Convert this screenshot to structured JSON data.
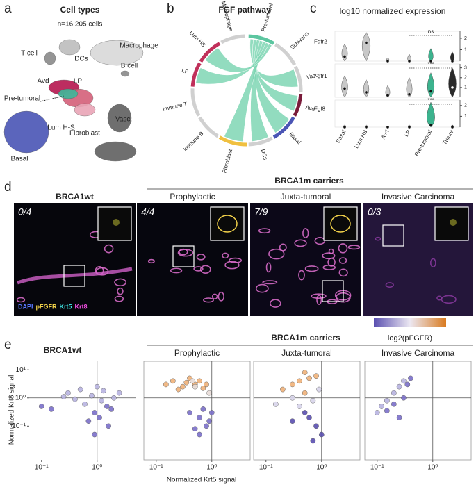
{
  "panel_a": {
    "label": "a",
    "title": "Cell types",
    "subtitle": "n=16,205 cells",
    "clusters": [
      "Macrophage",
      "T cell",
      "DCs",
      "Avd",
      "LP",
      "Pre-tumoral",
      "B cell",
      "Lum H-S",
      "Vasc.",
      "Basal",
      "Fibroblast"
    ],
    "colors": [
      "#d9d9d9",
      "#8a8a8a",
      "#bdbdbd",
      "#b5174f",
      "#d4607a",
      "#3fb89a",
      "#8a8a8a",
      "#e9a5b6",
      "#606060",
      "#4a55b5",
      "#606060"
    ]
  },
  "panel_b": {
    "label": "b",
    "title": "FGF pathway",
    "sectors": [
      "Pre-tumoral",
      "Schwann",
      "Vasc.",
      "Avd",
      "Basal",
      "DCs",
      "Fibroblast",
      "Immune B",
      "Immune T",
      "LP",
      "Lum HS",
      "Macrophage"
    ],
    "colors": [
      "#5cc6a0",
      "#d0d0d0",
      "#d0d0d0",
      "#7a1b3a",
      "#4a55b5",
      "#d0d0d0",
      "#f0c040",
      "#d0d0d0",
      "#d0d0d0",
      "#c0305a",
      "#c0305a",
      "#d0d0d0"
    ],
    "chord_color": "#7fd6b4"
  },
  "panel_c": {
    "label": "c",
    "title": "log10 normalized expression",
    "categories": [
      "Basal",
      "Lum HS",
      "Avd",
      "LP",
      "Pre-tumoral",
      "Tumor"
    ],
    "colors": [
      "#c8c8c8",
      "#c8c8c8",
      "#c8c8c8",
      "#c8c8c8",
      "#3cb38e",
      "#2a2a2a"
    ],
    "genes": [
      {
        "name": "Fgfr2",
        "ylim": [
          0,
          2.6
        ],
        "yticks": [
          1,
          2
        ],
        "maxes": [
          1.5,
          2.5,
          0.3,
          0.6,
          1.1,
          0.8
        ],
        "means": [
          0.4,
          1.6,
          0,
          0,
          0,
          0
        ],
        "annotation": "ns"
      },
      {
        "name": "Fgfr1",
        "ylim": [
          0,
          3.4
        ],
        "yticks": [
          1,
          2,
          3
        ],
        "maxes": [
          2.2,
          1.8,
          1.2,
          2.0,
          2.5,
          3.0
        ],
        "means": [
          0.9,
          0.5,
          0.2,
          0.3,
          0.6,
          1.0
        ],
        "annotation": "***"
      },
      {
        "name": "Fgf8",
        "ylim": [
          0,
          2.5
        ],
        "yticks": [
          1,
          2
        ],
        "maxes": [
          0.2,
          0.2,
          0.1,
          0.2,
          2.3,
          0.2
        ],
        "means": [
          0,
          0,
          0,
          0,
          0.2,
          0
        ],
        "annotation": "***"
      }
    ]
  },
  "panel_d": {
    "label": "d",
    "group_title": "BRCA1m carriers",
    "images": [
      {
        "title": "BRCA1wt",
        "count": "0/4"
      },
      {
        "title": "Prophylactic",
        "count": "4/4"
      },
      {
        "title": "Juxta-tumoral",
        "count": "7/9"
      },
      {
        "title": "Invasive Carcinoma",
        "count": "0/3"
      }
    ],
    "stains": [
      {
        "name": "DAPI",
        "color": "#5a78ff"
      },
      {
        "name": "pFGFR",
        "color": "#f2d24a"
      },
      {
        "name": "Krt5",
        "color": "#3ee0e0"
      },
      {
        "name": "Krt8",
        "color": "#f04ce0"
      }
    ]
  },
  "panel_e": {
    "label": "e",
    "group_title": "BRCA1m carriers",
    "colorbar_label": "log2(pFGFR)",
    "colorbar_colors": [
      "#5a4fb0",
      "#ece8f2",
      "#d97b20"
    ],
    "x_label": "Normalized Krt5 signal",
    "y_label": "Normalized Krt8 signal",
    "log_scale": true,
    "xlim": [
      0.06,
      4.9
    ],
    "ylim": [
      0.0063,
      20
    ],
    "xticks": [
      {
        "value": 0.1,
        "label": "10⁻¹"
      },
      {
        "value": 1,
        "label": "10⁰"
      }
    ],
    "yticks": [
      {
        "value": 0.1,
        "label": "10⁻¹"
      },
      {
        "value": 1,
        "label": "10⁰"
      },
      {
        "value": 10,
        "label": "10¹"
      }
    ],
    "reference_x": 1,
    "reference_y": 1,
    "plots": [
      {
        "title": "BRCA1wt",
        "series": [
          {
            "color": "#b8b3e0",
            "x": [
              0.3,
              0.5,
              0.8,
              1.2,
              0.6,
              2,
              0.4,
              1.3,
              2.5,
              1,
              0.25
            ],
            "y": [
              1.5,
              2,
              1.2,
              0.8,
              0.6,
              1,
              0.9,
              1.8,
              1.5,
              2.5,
              1.1
            ]
          },
          {
            "color": "#7b6fc9",
            "x": [
              1.5,
              0.9,
              1.1,
              0.15,
              0.1,
              0.7,
              1.6,
              0.9,
              1.8
            ],
            "y": [
              0.5,
              0.3,
              0.2,
              0.4,
              0.5,
              0.15,
              0.1,
              0.05,
              0.4
            ]
          }
        ]
      },
      {
        "title": "Prophylactic",
        "series": [
          {
            "color": "#f0b27a",
            "x": [
              0.15,
              0.2,
              0.3,
              0.4,
              0.5,
              0.6,
              0.8,
              0.25,
              0.7,
              0.35
            ],
            "y": [
              3,
              4,
              2.5,
              5,
              3,
              4,
              3,
              2,
              2.2,
              3.5
            ]
          },
          {
            "color": "#e8dcd8",
            "x": [
              0.5,
              0.9,
              0.45
            ],
            "y": [
              2.5,
              1.5,
              4
            ]
          },
          {
            "color": "#7b6fc9",
            "x": [
              0.4,
              0.6,
              0.8,
              0.5,
              0.7,
              1,
              0.9,
              0.6
            ],
            "y": [
              0.3,
              0.2,
              0.1,
              0.08,
              0.4,
              0.3,
              0.15,
              0.05
            ]
          }
        ]
      },
      {
        "title": "Juxta-tumoral",
        "series": [
          {
            "color": "#f0b27a",
            "x": [
              0.5,
              0.4,
              0.6,
              0.3,
              0.8,
              0.2,
              0.5
            ],
            "y": [
              8,
              4,
              5,
              3,
              6,
              2,
              1.5
            ]
          },
          {
            "color": "#d8d4ea",
            "x": [
              0.3,
              0.7,
              0.4,
              0.9,
              0.15
            ],
            "y": [
              1,
              0.8,
              0.5,
              2,
              0.6
            ]
          },
          {
            "color": "#5a4fb0",
            "x": [
              0.6,
              0.8,
              0.5,
              1,
              0.3,
              0.7
            ],
            "y": [
              0.2,
              0.1,
              0.3,
              0.05,
              0.15,
              0.03
            ]
          }
        ]
      },
      {
        "title": "Invasive Carcinoma",
        "series": [
          {
            "color": "#b8b3e0",
            "x": [
              0.1,
              0.12,
              0.15,
              0.2,
              0.25,
              0.3
            ],
            "y": [
              0.3,
              0.5,
              0.8,
              1.5,
              2.5,
              4
            ]
          },
          {
            "color": "#7b6fc9",
            "x": [
              0.35,
              0.4,
              0.2,
              0.15,
              0.3,
              0.25
            ],
            "y": [
              3,
              5,
              0.6,
              0.35,
              1,
              0.2
            ]
          }
        ]
      }
    ]
  }
}
